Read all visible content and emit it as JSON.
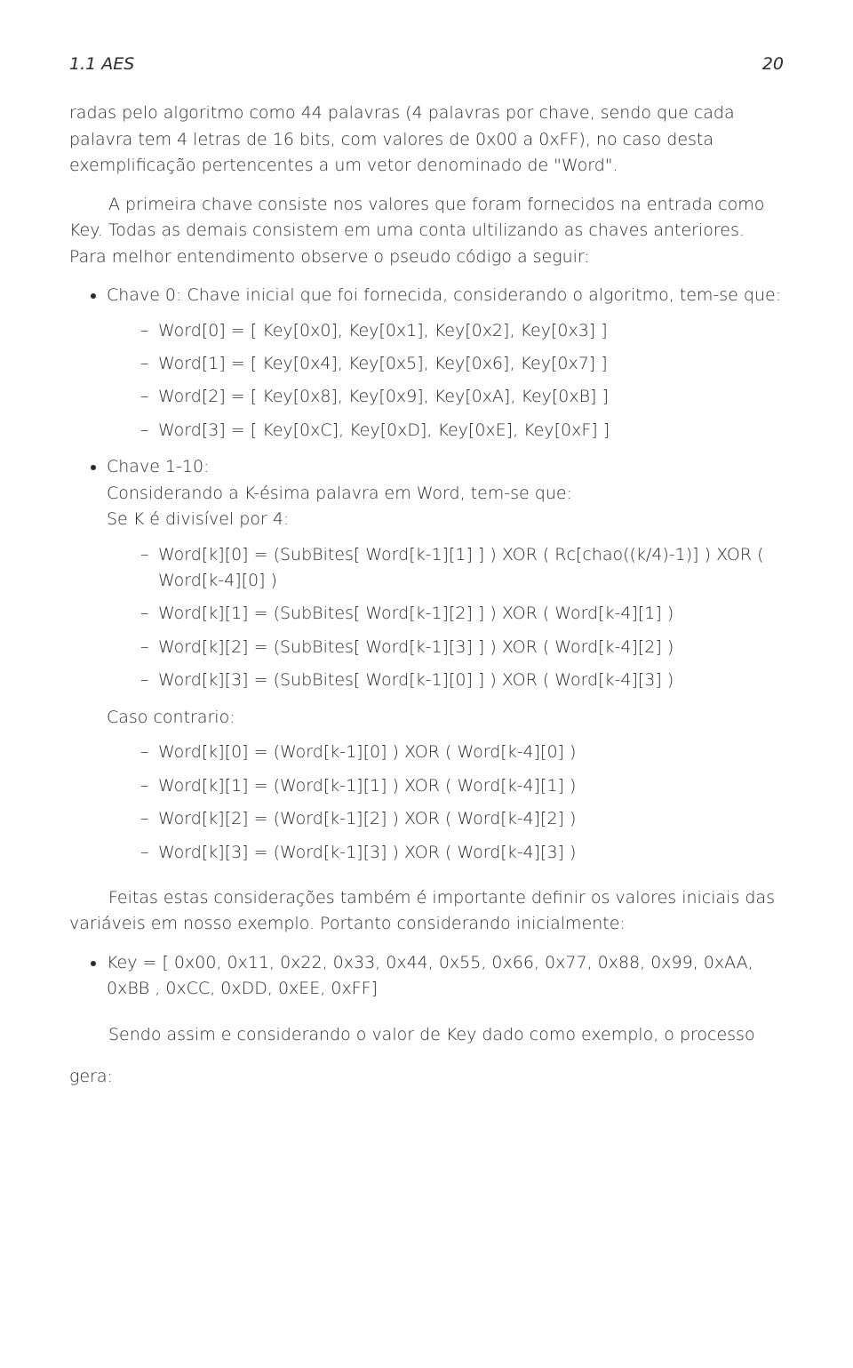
{
  "header": {
    "section": "1.1 AES",
    "page_number": "20"
  },
  "intro": {
    "p1": "radas pelo algoritmo como 44 palavras (4 palavras por chave, sendo que cada palavra tem 4 letras de 16 bits, com valores de 0x00 a 0xFF), no caso desta exemplificação pertencentes a um vetor denominado de \"Word\".",
    "p2": "A primeira chave consiste nos valores que foram fornecidos na entrada como Key. Todas as demais consistem em uma conta ultilizando as chaves anteriores. Para melhor entendimento observe o pseudo código a seguir:"
  },
  "chave0": {
    "title": "Chave 0: Chave inicial que foi fornecida, considerando o algoritmo, tem-se que:",
    "items": [
      "Word[0] = [ Key[0x0], Key[0x1], Key[0x2], Key[0x3] ]",
      "Word[1] = [ Key[0x4], Key[0x5], Key[0x6], Key[0x7] ]",
      "Word[2] = [ Key[0x8], Key[0x9], Key[0xA], Key[0xB] ]",
      "Word[3] = [ Key[0xC], Key[0xD], Key[0xE], Key[0xF] ]"
    ]
  },
  "chave1_10": {
    "title": "Chave 1-10:",
    "line1": "Considerando a K-ésima palavra em Word, tem-se que:",
    "cond_div_label": "Se K é divisível por 4:",
    "div_items": [
      "Word[k][0] = (SubBites[ Word[k-1][1] ] ) XOR ( Rc[chao((k/4)-1)] ) XOR ( Word[k-4][0] )",
      "Word[k][1] = (SubBites[ Word[k-1][2] ] ) XOR ( Word[k-4][1] )",
      "Word[k][2] = (SubBites[ Word[k-1][3] ] ) XOR ( Word[k-4][2] )",
      "Word[k][3] = (SubBites[ Word[k-1][0] ] ) XOR ( Word[k-4][3] )"
    ],
    "cond_else_label": "Caso contrario:",
    "else_items": [
      "Word[k][0] = (Word[k-1][0] ) XOR ( Word[k-4][0] )",
      "Word[k][1] = (Word[k-1][1] ) XOR ( Word[k-4][1] )",
      "Word[k][2] = (Word[k-1][2] ) XOR ( Word[k-4][2] )",
      "Word[k][3] = (Word[k-1][3] ) XOR ( Word[k-4][3] )"
    ]
  },
  "closing": {
    "p1": "Feitas estas considerações também é importante definir os valores iniciais das variáveis em nosso exemplo. Portanto considerando inicialmente:",
    "key_item": "Key = [ 0x00, 0x11, 0x22, 0x33, 0x44, 0x55, 0x66, 0x77, 0x88, 0x99, 0xAA, 0xBB , 0xCC, 0xDD, 0xEE, 0xFF]",
    "p2": "Sendo assim e considerando o valor de Key dado como exemplo, o processo",
    "gera": "gera:"
  }
}
